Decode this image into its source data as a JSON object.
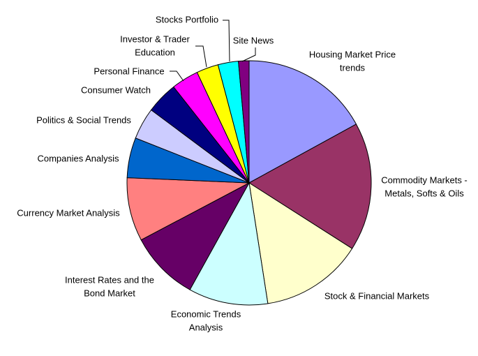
{
  "chart_data": {
    "type": "pie",
    "title": "",
    "unit": "percent",
    "start": "12 o'clock, clockwise",
    "legend": "none (slice labels)",
    "slices": [
      {
        "label": [
          "Housing Market Price",
          "trends"
        ],
        "value": 17.0,
        "color": "#9999FF"
      },
      {
        "label": [
          "Commodity Markets -",
          "Metals, Softs & Oils"
        ],
        "value": 17.0,
        "color": "#993366"
      },
      {
        "label": [
          "Stock & Financial Markets"
        ],
        "value": 13.5,
        "color": "#FFFFCC"
      },
      {
        "label": [
          "Economic Trends",
          "Analysis"
        ],
        "value": 10.5,
        "color": "#CCFFFF"
      },
      {
        "label": [
          "Interest Rates and the",
          "Bond Market"
        ],
        "value": 9.2,
        "color": "#660066"
      },
      {
        "label": [
          "Currency Market Analysis"
        ],
        "value": 8.4,
        "color": "#FF8080"
      },
      {
        "label": [
          "Companies Analysis"
        ],
        "value": 5.3,
        "color": "#0066CC"
      },
      {
        "label": [
          "Politics & Social Trends"
        ],
        "value": 4.2,
        "color": "#CCCCFF"
      },
      {
        "label": [
          "Consumer Watch"
        ],
        "value": 4.2,
        "color": "#000080"
      },
      {
        "label": [
          "Personal Finance"
        ],
        "value": 3.6,
        "color": "#FF00FF"
      },
      {
        "label": [
          "Investor & Trader",
          "Education"
        ],
        "value": 2.9,
        "color": "#FFFF00"
      },
      {
        "label": [
          "Stocks Portfolio"
        ],
        "value": 2.7,
        "color": "#00FFFF"
      },
      {
        "label": [
          "Site News"
        ],
        "value": 1.4,
        "color": "#800080"
      }
    ]
  }
}
